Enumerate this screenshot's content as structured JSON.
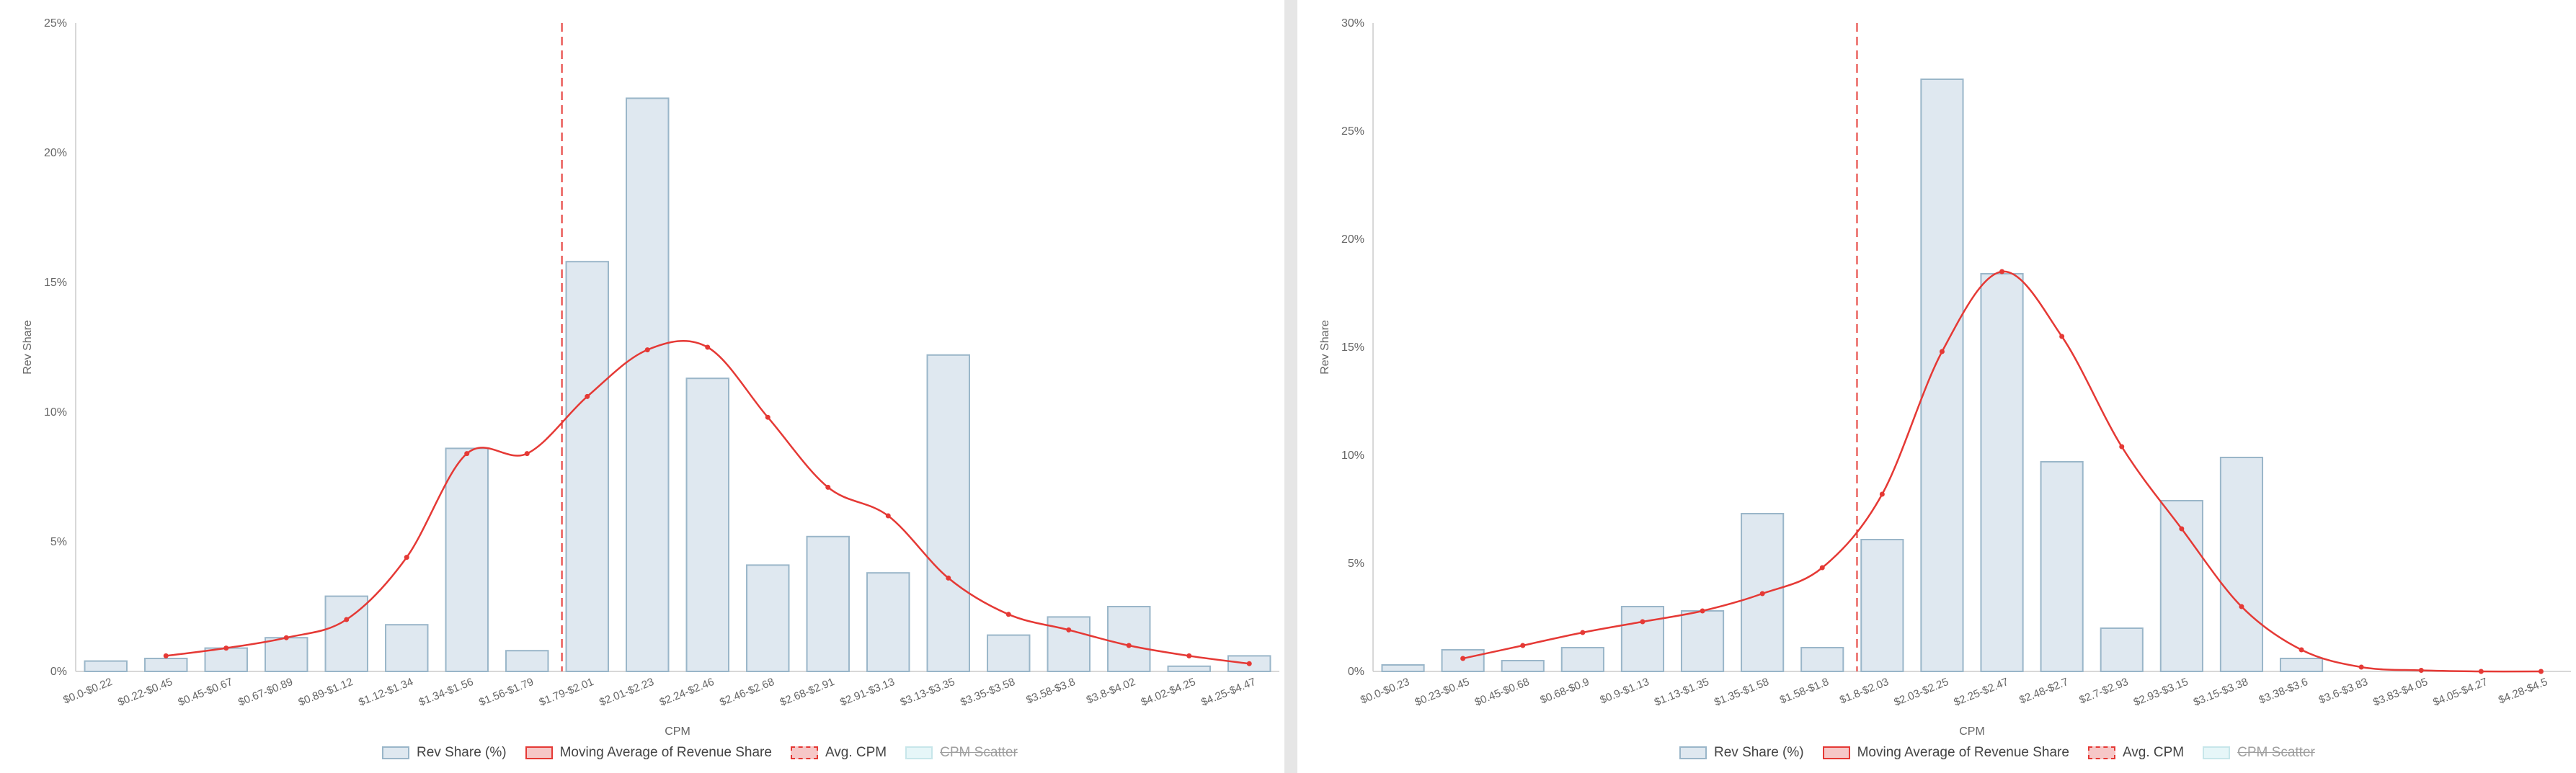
{
  "chart_data": [
    {
      "type": "bar",
      "xlabel": "CPM",
      "ylabel": "Rev Share",
      "ylim": [
        0,
        25
      ],
      "yticks": [
        "0%",
        "5%",
        "10%",
        "15%",
        "20%",
        "25%"
      ],
      "categories": [
        "$0.0-$0.22",
        "$0.22-$0.45",
        "$0.45-$0.67",
        "$0.67-$0.89",
        "$0.89-$1.12",
        "$1.12-$1.34",
        "$1.34-$1.56",
        "$1.56-$1.79",
        "$1.79-$2.01",
        "$2.01-$2.23",
        "$2.24-$2.46",
        "$2.46-$2.68",
        "$2.68-$2.91",
        "$2.91-$3.13",
        "$3.13-$3.35",
        "$3.35-$3.58",
        "$3.58-$3.8",
        "$3.8-$4.02",
        "$4.02-$4.25",
        "$4.25-$4.47"
      ],
      "series": [
        {
          "name": "Rev Share (%)",
          "type": "bar",
          "values": [
            0.4,
            0.5,
            0.9,
            1.3,
            2.9,
            1.8,
            8.6,
            0.8,
            15.8,
            22.1,
            11.3,
            4.1,
            5.2,
            3.8,
            12.2,
            1.4,
            2.1,
            2.5,
            0.2,
            0.6
          ]
        },
        {
          "name": "Moving Average of Revenue Share",
          "type": "line",
          "values": [
            null,
            0.6,
            0.9,
            1.3,
            2.0,
            4.4,
            8.4,
            8.4,
            10.6,
            12.4,
            12.5,
            9.8,
            7.1,
            6.0,
            3.6,
            2.2,
            1.6,
            1.0,
            0.6,
            0.3
          ]
        }
      ],
      "avg_cpm_position": "$1.79-$2.01",
      "legend": [
        {
          "label": "Rev Share (%)",
          "enabled": true
        },
        {
          "label": "Moving Average of Revenue Share",
          "enabled": true
        },
        {
          "label": "Avg. CPM",
          "enabled": true
        },
        {
          "label": "CPM Scatter",
          "enabled": false
        }
      ],
      "legend_position": "bottom-center",
      "grid": false
    },
    {
      "type": "bar",
      "xlabel": "CPM",
      "ylabel": "Rev Share",
      "ylim": [
        0,
        30
      ],
      "yticks": [
        "0%",
        "5%",
        "10%",
        "15%",
        "20%",
        "25%",
        "30%"
      ],
      "categories": [
        "$0.0-$0.23",
        "$0.23-$0.45",
        "$0.45-$0.68",
        "$0.68-$0.9",
        "$0.9-$1.13",
        "$1.13-$1.35",
        "$1.35-$1.58",
        "$1.58-$1.8",
        "$1.8-$2.03",
        "$2.03-$2.25",
        "$2.25-$2.47",
        "$2.48-$2.7",
        "$2.7-$2.93",
        "$2.93-$3.15",
        "$3.15-$3.38",
        "$3.38-$3.6",
        "$3.6-$3.83",
        "$3.83-$4.05",
        "$4.05-$4.27",
        "$4.28-$4.5"
      ],
      "series": [
        {
          "name": "Rev Share (%)",
          "type": "bar",
          "values": [
            0.3,
            1.0,
            0.5,
            1.1,
            3.0,
            2.8,
            7.3,
            1.1,
            6.1,
            27.4,
            18.4,
            9.7,
            2.0,
            7.9,
            9.9,
            0.6,
            0,
            0,
            0,
            0
          ]
        },
        {
          "name": "Moving Average of Revenue Share",
          "type": "line",
          "values": [
            null,
            0.6,
            1.2,
            1.8,
            2.3,
            2.8,
            3.6,
            4.8,
            8.2,
            14.8,
            18.5,
            15.5,
            10.4,
            6.6,
            3.0,
            1.0,
            0.2,
            0.05,
            0.0,
            0.0
          ]
        }
      ],
      "avg_cpm_position": "$1.8-$2.03",
      "legend": [
        {
          "label": "Rev Share (%)",
          "enabled": true
        },
        {
          "label": "Moving Average of Revenue Share",
          "enabled": true
        },
        {
          "label": "Avg. CPM",
          "enabled": true
        },
        {
          "label": "CPM Scatter",
          "enabled": false
        }
      ],
      "legend_position": "bottom-center",
      "grid": false
    }
  ],
  "colors": {
    "bar_fill": "#dfe8f0",
    "bar_stroke": "#9ab6c9",
    "line": "#e53935",
    "avg_line": "#e53935",
    "axis": "#cccccc"
  }
}
